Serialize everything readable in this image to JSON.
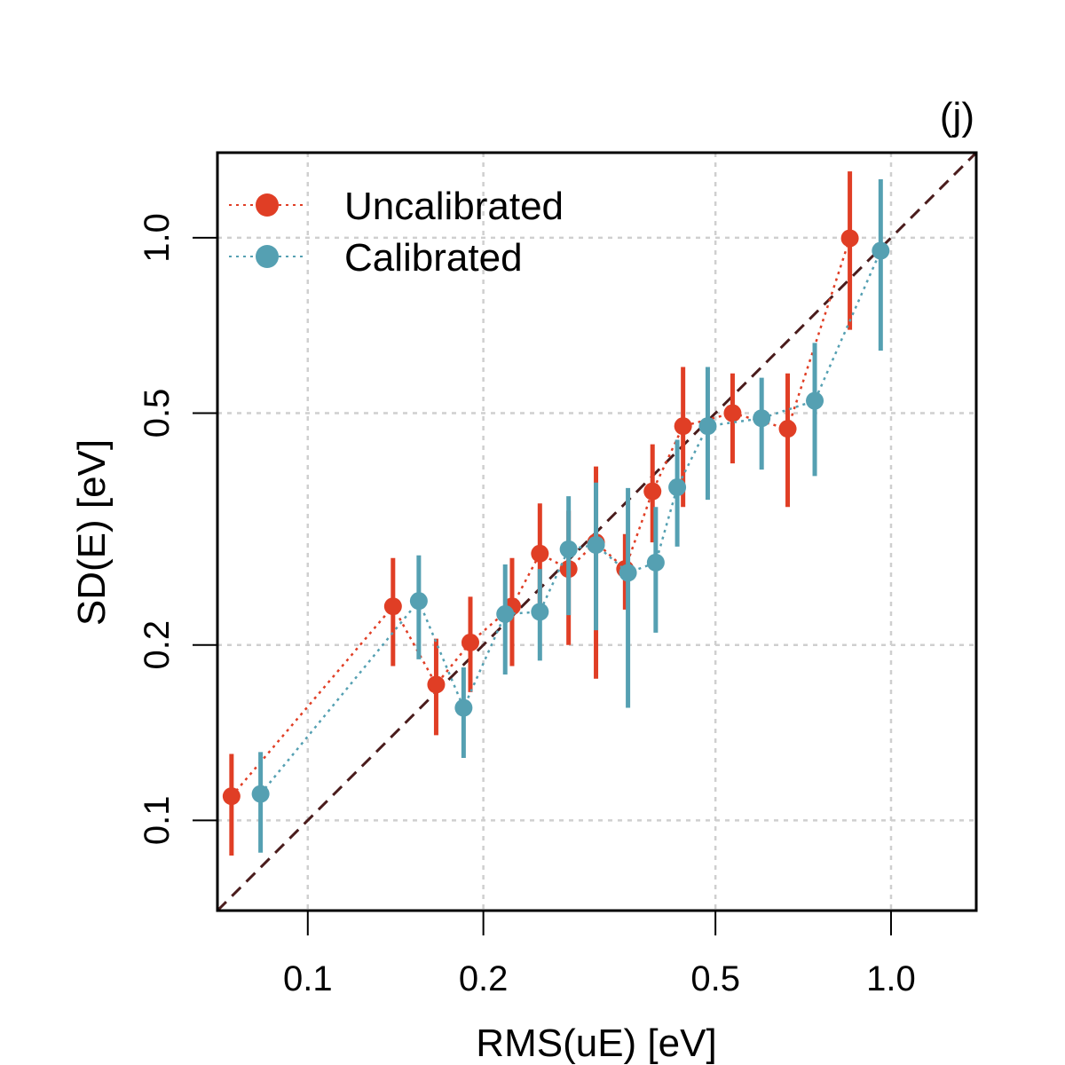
{
  "chart_data": {
    "type": "scatter",
    "panel_tag": "(j)",
    "xlabel": "RMS(uE) [eV]",
    "ylabel": "SD(E) [eV]",
    "x_scale": "log",
    "y_scale": "log",
    "xlim": [
      0.07,
      1.4
    ],
    "ylim": [
      0.07,
      1.4
    ],
    "x_ticks": [
      {
        "value": 0.1,
        "label": "0.1"
      },
      {
        "value": 0.2,
        "label": "0.2"
      },
      {
        "value": 0.5,
        "label": "0.5"
      },
      {
        "value": 1.0,
        "label": "1.0"
      }
    ],
    "y_ticks": [
      {
        "value": 0.1,
        "label": "0.1"
      },
      {
        "value": 0.2,
        "label": "0.2"
      },
      {
        "value": 0.5,
        "label": "0.5"
      },
      {
        "value": 1.0,
        "label": "1.0"
      }
    ],
    "grid": true,
    "legend_position": "top-left",
    "reference_line": {
      "type": "identity",
      "style": "dashed",
      "color": "#4a1c1c"
    },
    "series": [
      {
        "name": "Uncalibrated",
        "color": "#e03e25",
        "points": [
          {
            "x": 0.074,
            "y": 0.11,
            "lo": 0.087,
            "hi": 0.13
          },
          {
            "x": 0.14,
            "y": 0.233,
            "lo": 0.184,
            "hi": 0.282
          },
          {
            "x": 0.166,
            "y": 0.171,
            "lo": 0.14,
            "hi": 0.205
          },
          {
            "x": 0.19,
            "y": 0.202,
            "lo": 0.166,
            "hi": 0.242
          },
          {
            "x": 0.224,
            "y": 0.233,
            "lo": 0.184,
            "hi": 0.282
          },
          {
            "x": 0.25,
            "y": 0.287,
            "lo": 0.23,
            "hi": 0.35
          },
          {
            "x": 0.28,
            "y": 0.27,
            "lo": 0.2,
            "hi": 0.34
          },
          {
            "x": 0.312,
            "y": 0.3,
            "lo": 0.175,
            "hi": 0.405
          },
          {
            "x": 0.35,
            "y": 0.27,
            "lo": 0.23,
            "hi": 0.31
          },
          {
            "x": 0.39,
            "y": 0.367,
            "lo": 0.3,
            "hi": 0.442
          },
          {
            "x": 0.44,
            "y": 0.475,
            "lo": 0.345,
            "hi": 0.6
          },
          {
            "x": 0.535,
            "y": 0.5,
            "lo": 0.41,
            "hi": 0.585
          },
          {
            "x": 0.665,
            "y": 0.47,
            "lo": 0.345,
            "hi": 0.585
          },
          {
            "x": 0.85,
            "y": 0.998,
            "lo": 0.695,
            "hi": 1.3
          }
        ]
      },
      {
        "name": "Calibrated",
        "color": "#55a0b2",
        "points": [
          {
            "x": 0.083,
            "y": 0.111,
            "lo": 0.088,
            "hi": 0.131
          },
          {
            "x": 0.155,
            "y": 0.238,
            "lo": 0.189,
            "hi": 0.285
          },
          {
            "x": 0.185,
            "y": 0.156,
            "lo": 0.128,
            "hi": 0.183
          },
          {
            "x": 0.218,
            "y": 0.226,
            "lo": 0.178,
            "hi": 0.275
          },
          {
            "x": 0.25,
            "y": 0.228,
            "lo": 0.188,
            "hi": 0.27
          },
          {
            "x": 0.28,
            "y": 0.292,
            "lo": 0.225,
            "hi": 0.36
          },
          {
            "x": 0.312,
            "y": 0.297,
            "lo": 0.212,
            "hi": 0.38
          },
          {
            "x": 0.354,
            "y": 0.266,
            "lo": 0.156,
            "hi": 0.372
          },
          {
            "x": 0.395,
            "y": 0.277,
            "lo": 0.21,
            "hi": 0.345
          },
          {
            "x": 0.43,
            "y": 0.373,
            "lo": 0.295,
            "hi": 0.45
          },
          {
            "x": 0.485,
            "y": 0.475,
            "lo": 0.355,
            "hi": 0.6
          },
          {
            "x": 0.6,
            "y": 0.49,
            "lo": 0.4,
            "hi": 0.575
          },
          {
            "x": 0.74,
            "y": 0.525,
            "lo": 0.39,
            "hi": 0.66
          },
          {
            "x": 0.96,
            "y": 0.95,
            "lo": 0.64,
            "hi": 1.26
          }
        ]
      }
    ]
  }
}
